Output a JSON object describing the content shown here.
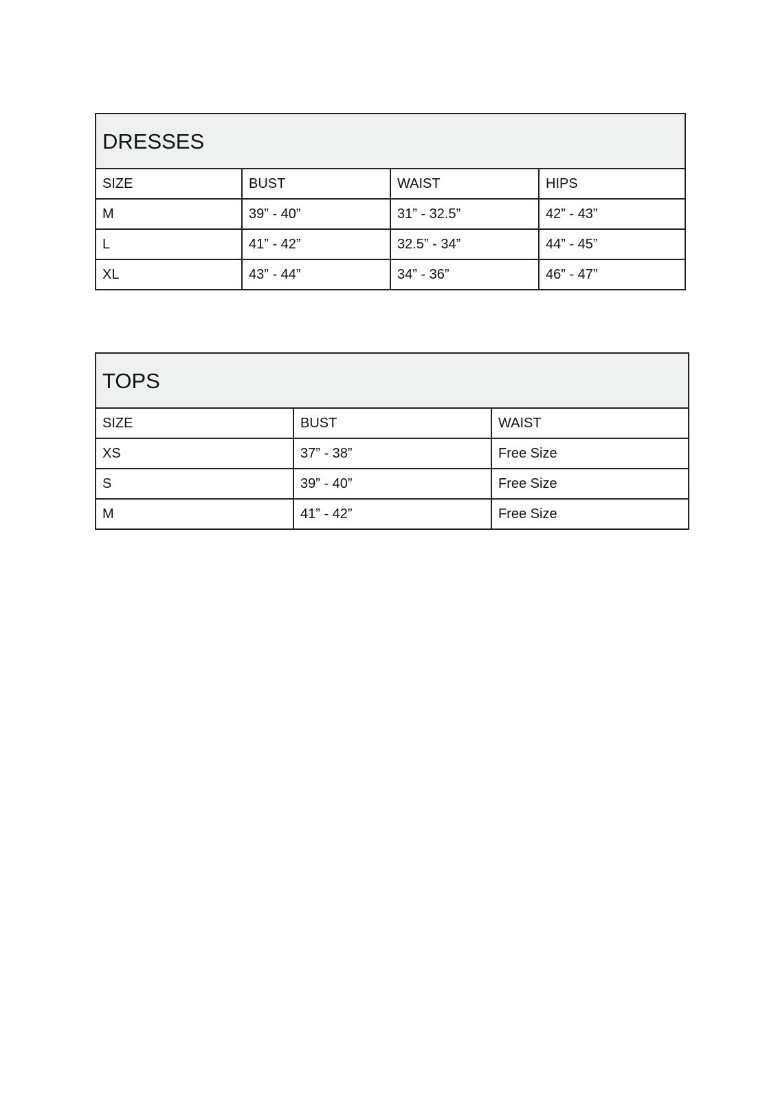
{
  "dresses": {
    "title": "DRESSES",
    "headers": [
      "SIZE",
      "BUST",
      "WAIST",
      "HIPS"
    ],
    "rows": [
      [
        "M",
        "39” - 40”",
        "31” - 32.5”",
        "42” - 43”"
      ],
      [
        "L",
        "41” - 42”",
        "32.5” - 34”",
        "44” - 45”"
      ],
      [
        "XL",
        "43” - 44”",
        "34” - 36”",
        "46” - 47”"
      ]
    ]
  },
  "tops": {
    "title": "TOPS",
    "headers": [
      "SIZE",
      "BUST",
      "WAIST"
    ],
    "rows": [
      [
        "XS",
        "37” - 38”",
        "Free Size"
      ],
      [
        "S",
        "39” - 40”",
        "Free Size"
      ],
      [
        "M",
        "41” - 42”",
        "Free Size"
      ]
    ]
  },
  "colors": {
    "title_background": "#eff1f1",
    "border": "#222222"
  }
}
